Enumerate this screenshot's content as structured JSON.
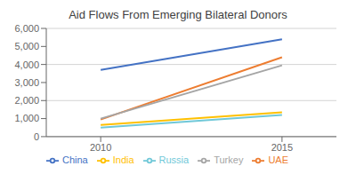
{
  "chart_data": {
    "type": "line",
    "title": "Aid Flows From Emerging Bilateral Donors",
    "x": [
      2010,
      2015
    ],
    "series": [
      {
        "name": "China",
        "color": "#4472C4",
        "values": [
          3700,
          5400
        ]
      },
      {
        "name": "UAE",
        "color": "#ED7D31",
        "values": [
          950,
          4400
        ]
      },
      {
        "name": "Turkey",
        "color": "#A5A5A5",
        "values": [
          1000,
          3950
        ]
      },
      {
        "name": "India",
        "color": "#FFC000",
        "values": [
          650,
          1350
        ]
      },
      {
        "name": "Russia",
        "color": "#70C8D8",
        "values": [
          500,
          1200
        ]
      }
    ],
    "xlim": [
      2008.5,
      2016.5
    ],
    "xticks": [
      2010,
      2015
    ],
    "ylim": [
      0,
      6000
    ],
    "yticks": [
      0,
      {
        "value": 1000,
        "label": "1,000"
      },
      {
        "value": 2000,
        "label": "2,000"
      },
      {
        "value": 3000,
        "label": "3,000"
      },
      {
        "value": 4000,
        "label": "4,000"
      },
      {
        "value": 5000,
        "label": "5,000"
      },
      {
        "value": 6000,
        "label": "6,000"
      }
    ],
    "grid": true,
    "legend": "bottom"
  }
}
